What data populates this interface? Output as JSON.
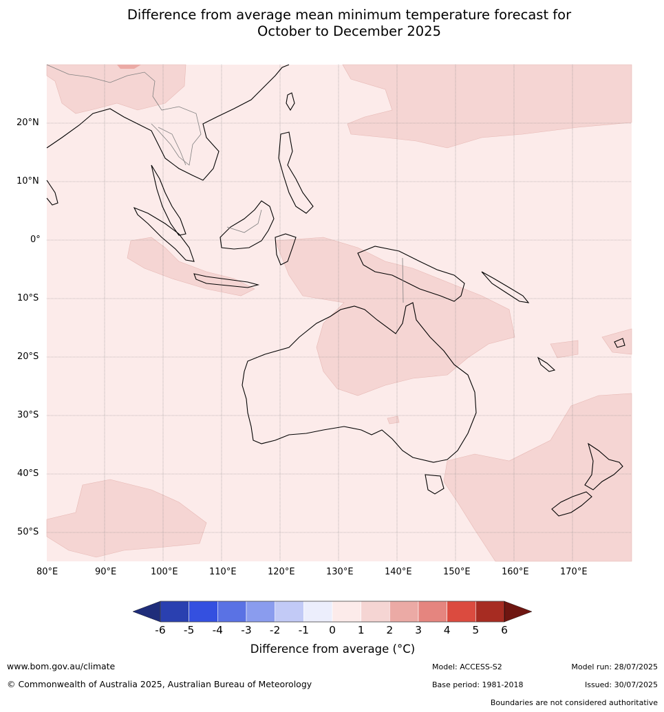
{
  "title_line1": "Difference from average mean minimum temperature forecast for",
  "title_line2": "October to December 2025",
  "lat_labels": [
    "20°N",
    "10°N",
    "0°",
    "10°S",
    "20°S",
    "30°S",
    "40°S",
    "50°S"
  ],
  "lon_labels": [
    "80°E",
    "90°E",
    "100°E",
    "110°E",
    "120°E",
    "130°E",
    "140°E",
    "150°E",
    "160°E",
    "170°E"
  ],
  "map": {
    "extent_lon": [
      80,
      180
    ],
    "extent_lat": [
      -55,
      30
    ],
    "background_anomaly_category": "0 to 1",
    "highlighted_anomaly_category": "1 to 2"
  },
  "colorbar": {
    "title": "Difference from average (°C)",
    "ticks": [
      "-6",
      "-5",
      "-4",
      "-3",
      "-2",
      "-1",
      "0",
      "1",
      "2",
      "3",
      "4",
      "5",
      "6"
    ],
    "colors": [
      "#1f2d7a",
      "#2a40b0",
      "#3450e0",
      "#5a72e4",
      "#8a9cee",
      "#c2caf6",
      "#eceefc",
      "#fcebea",
      "#f5d5d3",
      "#ebaaa5",
      "#e5857f",
      "#db4b3f",
      "#a72c22",
      "#6e1611"
    ]
  },
  "footer": {
    "website": "www.bom.gov.au/climate",
    "copyright": "© Commonwealth of Australia 2025, Australian Bureau of Meteorology",
    "model": "Model: ACCESS-S2",
    "base_period": "Base period: 1981-2018",
    "model_run": "Model run: 28/07/2025",
    "issued": "Issued: 30/07/2025",
    "disclaimer": "Boundaries are not considered authoritative"
  }
}
